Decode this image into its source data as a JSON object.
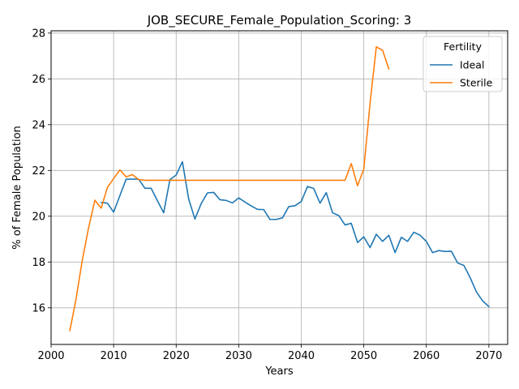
{
  "chart_data": {
    "type": "line",
    "title": "JOB_SECURE_Female_Population_Scoring: 3",
    "xlabel": "Years",
    "ylabel": "% of Female Population",
    "xlim": [
      2000,
      2073
    ],
    "ylim": [
      14.4,
      28.1
    ],
    "xticks": [
      2000,
      2010,
      2020,
      2030,
      2040,
      2050,
      2060,
      2070
    ],
    "yticks": [
      16,
      18,
      20,
      22,
      24,
      26,
      28
    ],
    "grid": true,
    "legend": {
      "title": "Fertility",
      "placement": "top-right"
    },
    "series": [
      {
        "name": "Ideal",
        "color": "#1f77b4",
        "x": [
          2008,
          2009,
          2010,
          2011,
          2012,
          2013,
          2014,
          2015,
          2016,
          2017,
          2018,
          2019,
          2020,
          2021,
          2022,
          2023,
          2024,
          2025,
          2026,
          2027,
          2028,
          2029,
          2030,
          2031,
          2032,
          2033,
          2034,
          2035,
          2036,
          2037,
          2038,
          2039,
          2040,
          2041,
          2042,
          2043,
          2044,
          2045,
          2046,
          2047,
          2048,
          2049,
          2050,
          2051,
          2052,
          2053,
          2054,
          2055,
          2056,
          2057,
          2058,
          2059,
          2060,
          2061,
          2062,
          2063,
          2064,
          2065,
          2066,
          2067,
          2068,
          2069,
          2070
        ],
        "y": [
          20.6,
          20.57,
          20.18,
          20.9,
          21.62,
          21.62,
          21.62,
          21.22,
          21.22,
          20.68,
          20.15,
          21.6,
          21.8,
          22.38,
          20.75,
          19.88,
          20.55,
          21.02,
          21.04,
          20.72,
          20.69,
          20.58,
          20.8,
          20.62,
          20.45,
          20.3,
          20.29,
          19.86,
          19.86,
          19.93,
          20.42,
          20.46,
          20.64,
          21.3,
          21.21,
          20.57,
          21.03,
          20.15,
          20.03,
          19.62,
          19.69,
          18.85,
          19.1,
          18.63,
          19.21,
          18.9,
          19.17,
          18.41,
          19.08,
          18.9,
          19.3,
          19.17,
          18.9,
          18.41,
          18.5,
          18.46,
          18.47,
          17.96,
          17.85,
          17.32,
          16.7,
          16.3,
          16.05
        ]
      },
      {
        "name": "Sterile",
        "color": "#ff7f0e",
        "x": [
          2003,
          2004,
          2005,
          2006,
          2007,
          2008,
          2009,
          2010,
          2011,
          2012,
          2013,
          2014,
          2015,
          2016,
          2017,
          2018,
          2019,
          2020,
          2021,
          2022,
          2023,
          2024,
          2025,
          2026,
          2027,
          2028,
          2029,
          2030,
          2031,
          2032,
          2033,
          2034,
          2035,
          2036,
          2037,
          2038,
          2039,
          2040,
          2041,
          2042,
          2043,
          2044,
          2045,
          2046,
          2047,
          2048,
          2049,
          2050,
          2051,
          2052,
          2053,
          2054
        ],
        "y": [
          15.0,
          16.4,
          18.1,
          19.5,
          20.7,
          20.35,
          21.25,
          21.65,
          22.02,
          21.72,
          21.82,
          21.6,
          21.57,
          21.57,
          21.57,
          21.57,
          21.57,
          21.57,
          21.57,
          21.57,
          21.57,
          21.57,
          21.57,
          21.57,
          21.57,
          21.57,
          21.57,
          21.57,
          21.57,
          21.57,
          21.57,
          21.57,
          21.57,
          21.57,
          21.57,
          21.57,
          21.57,
          21.57,
          21.57,
          21.57,
          21.57,
          21.57,
          21.57,
          21.57,
          21.57,
          22.3,
          21.33,
          22.07,
          24.93,
          27.4,
          27.25,
          26.43
        ]
      }
    ]
  }
}
